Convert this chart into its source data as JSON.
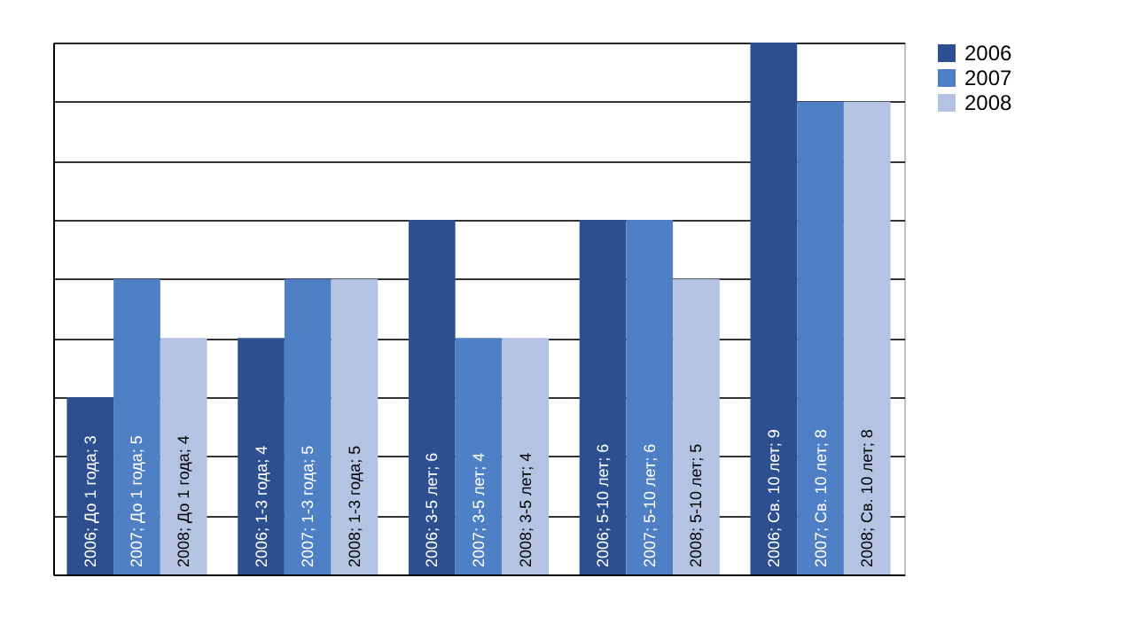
{
  "chart_data": {
    "type": "bar",
    "categories": [
      null,
      null,
      null,
      null,
      null
    ],
    "series": [
      {
        "name": "2006",
        "color": "#2e4f8f",
        "values": [
          3,
          4,
          6,
          6,
          9
        ],
        "value_labels": [
          "2006; До 1 года; 3",
          "2006; 1-3 года; 4",
          "2006; 3-5 лет; 6",
          "2006; 5-10 лет; 6",
          "2006; Св. 10 лет; 9"
        ]
      },
      {
        "name": "2007",
        "color": "#4f7fc4",
        "values": [
          5,
          5,
          4,
          6,
          8
        ],
        "value_labels": [
          "2007; До 1 года; 5",
          "2007; 1-3 года; 5",
          "2007; 3-5 лет; 4",
          "2007; 5-10 лет; 6",
          "2007; Св. 10 лет; 8"
        ]
      },
      {
        "name": "2008",
        "color": "#b4c3e2",
        "values": [
          4,
          5,
          4,
          5,
          8
        ],
        "value_labels": [
          "2008; До 1 года; 4",
          "2008; 1-3 года; 5",
          "2008; 3-5 лет; 4",
          "2008; 5-10 лет; 5",
          "2008; Св. 10 лет; 8"
        ]
      }
    ],
    "ylim": [
      0,
      9
    ],
    "grid": "y",
    "legend": "right"
  }
}
